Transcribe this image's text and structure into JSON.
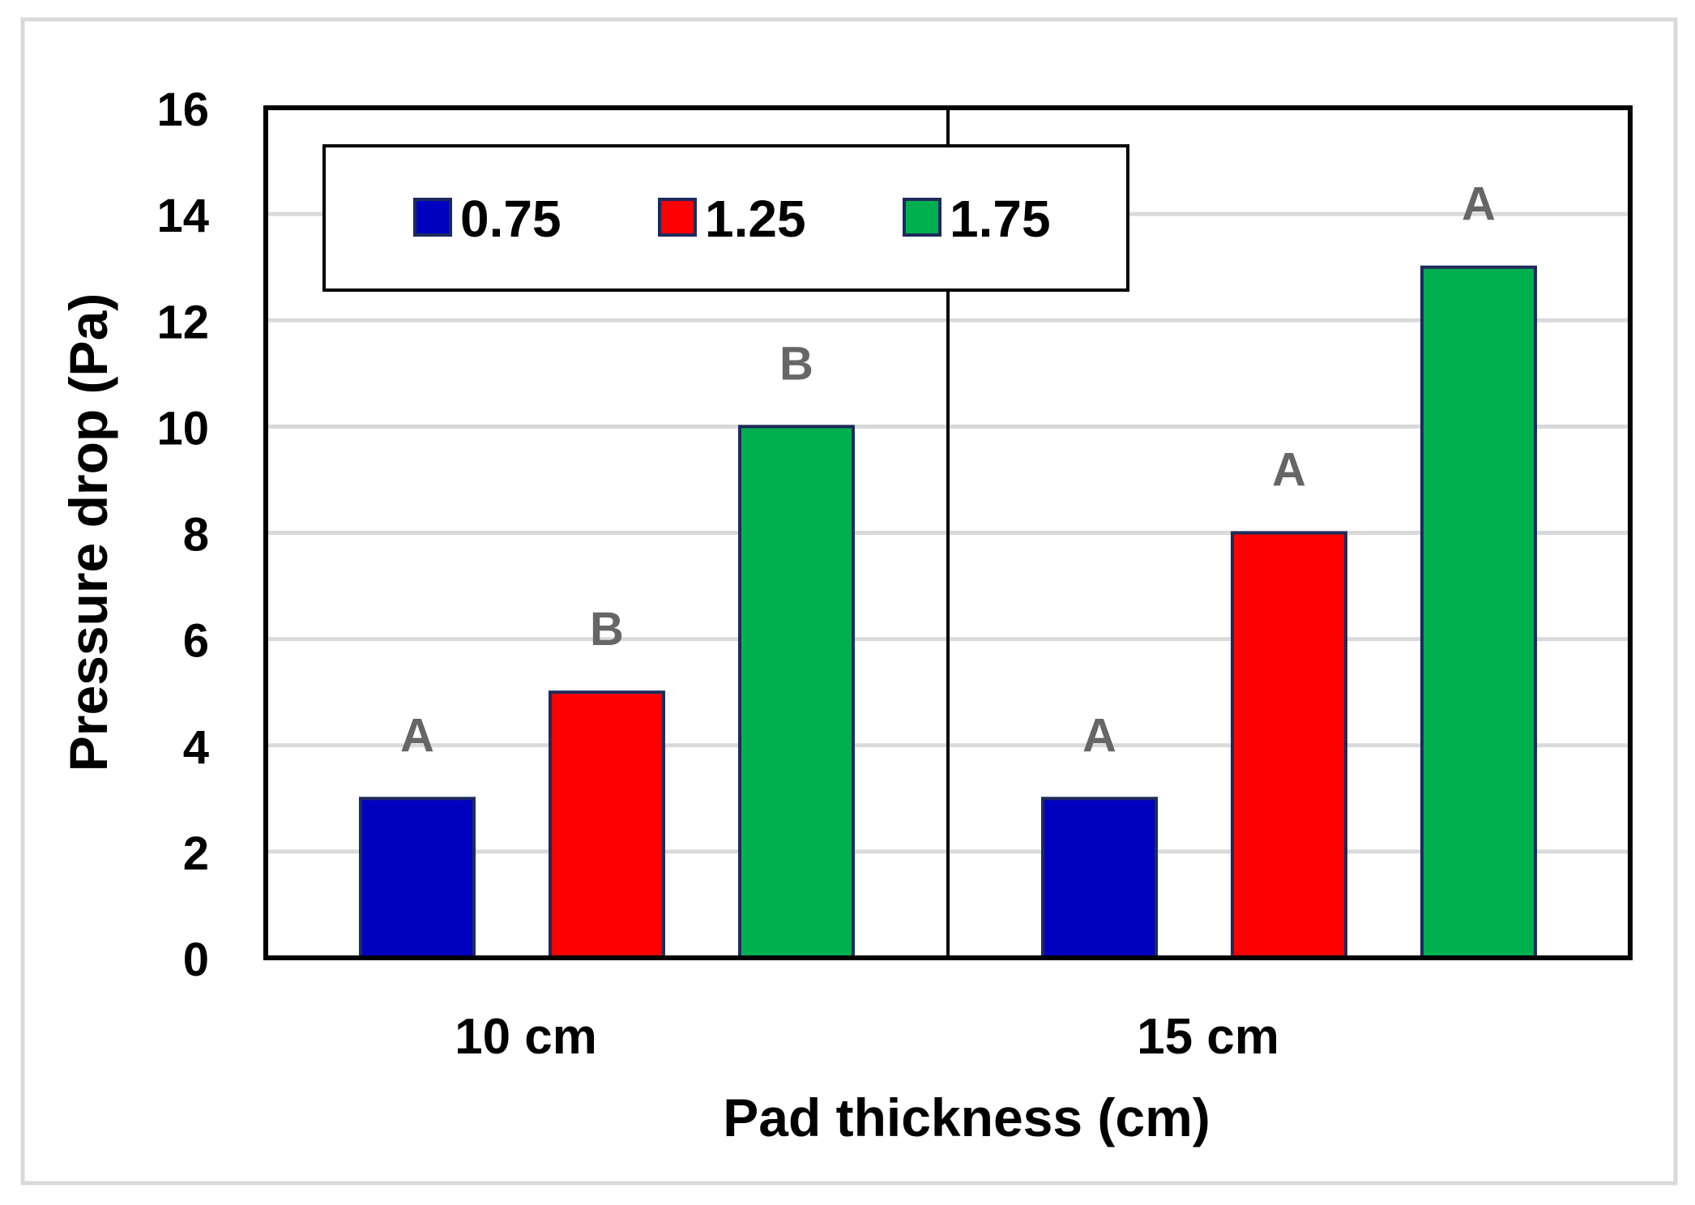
{
  "chart_data": {
    "type": "bar",
    "title": "",
    "xlabel": "Pad thickness (cm)",
    "ylabel": "Pressure drop (Pa)",
    "categories": [
      "10 cm",
      "15 cm"
    ],
    "series": [
      {
        "name": "0.75",
        "values": [
          3,
          3
        ],
        "letters": [
          "A",
          "A"
        ],
        "color": "#0000C0"
      },
      {
        "name": "1.25",
        "values": [
          5,
          8
        ],
        "letters": [
          "B",
          "A"
        ],
        "color": "#FF0000"
      },
      {
        "name": "1.75",
        "values": [
          10,
          13
        ],
        "letters": [
          "B",
          "A"
        ],
        "color": "#00B050"
      }
    ],
    "ylim": [
      0,
      16
    ],
    "yticks": [
      "0",
      "2",
      "4",
      "6",
      "8",
      "10",
      "12",
      "14",
      "16"
    ],
    "grid": true,
    "legend": "top-left",
    "colors": {
      "bar_outline": "#1F2A5C",
      "letter": "#666666",
      "gridline": "#D9D9D9",
      "frame": "#000000",
      "figure_border": "#D9D9D9"
    }
  }
}
